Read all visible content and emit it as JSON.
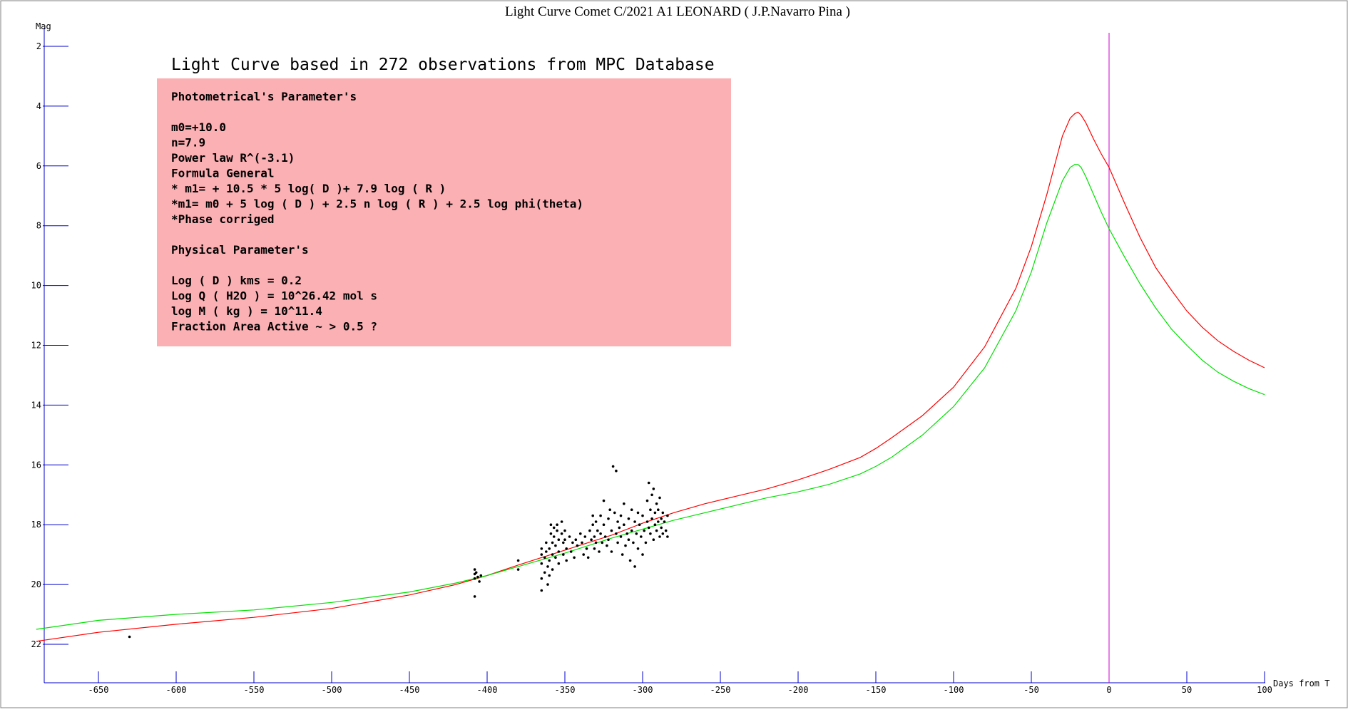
{
  "chart_data": {
    "type": "line",
    "title": "Light Curve Comet C/2021 A1 LEONARD ( J.P.Navarro Pina )",
    "xlabel": "Days from T",
    "ylabel": "Mag",
    "xlim": [
      -690,
      100
    ],
    "ylim": [
      23.2,
      1.6
    ],
    "y_inverted": true,
    "grid": false,
    "x_ticks": [
      -650,
      -600,
      -550,
      -500,
      -450,
      -400,
      -350,
      -300,
      -250,
      -200,
      -150,
      -100,
      -50,
      0,
      50,
      100
    ],
    "y_ticks": [
      2,
      4,
      6,
      8,
      10,
      12,
      14,
      16,
      18,
      20,
      22
    ],
    "colors": {
      "axis": "#0000cc",
      "frame": "#808080",
      "red_curve": "#ff0000",
      "green_curve": "#00e000",
      "perihelion_line": "#cc00cc",
      "observations": "#000000",
      "info_box": "#fbb0b4"
    },
    "perihelion_x": 0,
    "annotation_headline": "Light Curve based in 272 observations from MPC Database",
    "annotation_lines": [
      "Photometrical's Parameter's",
      "",
      "m0=+10.0",
      "n=7.9",
      "Power law R^(-3.1)",
      "Formula General",
      "* m1= + 10.5 * 5 log( D )+ 7.9 log ( R )",
      "*m1= m0 + 5 log ( D ) + 2.5 n  log ( R ) + 2.5 log phi(theta)",
      "*Phase corriged",
      "",
      "Physical Parameter's",
      "",
      "Log ( D ) kms = 0.2",
      "Log Q ( H2O ) = 10^26.42 mol s",
      "log M ( kg ) = 10^11.4",
      "Fraction Area Active ~ > 0.5 ?"
    ],
    "series": [
      {
        "color": "#ff0000",
        "x": [
          -690,
          -650,
          -600,
          -550,
          -500,
          -450,
          -420,
          -400,
          -380,
          -350,
          -320,
          -300,
          -280,
          -260,
          -240,
          -220,
          -200,
          -180,
          -160,
          -150,
          -140,
          -120,
          -100,
          -80,
          -60,
          -50,
          -40,
          -30,
          -25,
          -22,
          -20,
          -18,
          -15,
          -10,
          -5,
          0,
          10,
          20,
          30,
          40,
          50,
          60,
          70,
          80,
          90,
          100
        ],
        "y": [
          21.9,
          21.6,
          21.33,
          21.1,
          20.8,
          20.35,
          20.0,
          19.7,
          19.35,
          18.85,
          18.35,
          17.95,
          17.6,
          17.3,
          17.05,
          16.8,
          16.5,
          16.15,
          15.75,
          15.45,
          15.1,
          14.35,
          13.4,
          12.05,
          10.1,
          8.7,
          6.95,
          5.0,
          4.4,
          4.25,
          4.2,
          4.3,
          4.55,
          5.1,
          5.6,
          6.05,
          7.25,
          8.4,
          9.4,
          10.15,
          10.85,
          11.4,
          11.85,
          12.2,
          12.5,
          12.75
        ]
      },
      {
        "color": "#00e000",
        "x": [
          -690,
          -650,
          -600,
          -550,
          -500,
          -450,
          -420,
          -400,
          -380,
          -350,
          -320,
          -300,
          -280,
          -260,
          -240,
          -220,
          -200,
          -180,
          -160,
          -150,
          -140,
          -120,
          -100,
          -80,
          -60,
          -50,
          -40,
          -30,
          -25,
          -22,
          -20,
          -18,
          -15,
          -10,
          -5,
          0,
          10,
          20,
          30,
          40,
          50,
          60,
          70,
          80,
          90,
          100
        ],
        "y": [
          21.5,
          21.2,
          21.0,
          20.85,
          20.6,
          20.25,
          19.95,
          19.7,
          19.4,
          18.95,
          18.45,
          18.15,
          17.85,
          17.6,
          17.35,
          17.1,
          16.9,
          16.65,
          16.3,
          16.05,
          15.75,
          15.0,
          14.05,
          12.75,
          10.85,
          9.55,
          7.9,
          6.5,
          6.05,
          5.95,
          5.95,
          6.05,
          6.35,
          6.95,
          7.55,
          8.1,
          9.05,
          9.95,
          10.75,
          11.45,
          12.0,
          12.5,
          12.9,
          13.2,
          13.45,
          13.65
        ]
      }
    ],
    "observations": [
      [
        -630,
        21.75
      ],
      [
        -408,
        19.5
      ],
      [
        -408,
        19.65
      ],
      [
        -408,
        19.8
      ],
      [
        -408,
        20.4
      ],
      [
        -407,
        19.6
      ],
      [
        -406,
        19.75
      ],
      [
        -405,
        19.9
      ],
      [
        -404,
        19.7
      ],
      [
        -380,
        19.2
      ],
      [
        -380,
        19.5
      ],
      [
        -365,
        19.8
      ],
      [
        -365,
        20.2
      ],
      [
        -365,
        19.0
      ],
      [
        -365,
        18.8
      ],
      [
        -365,
        19.3
      ],
      [
        -363,
        19.1
      ],
      [
        -363,
        19.6
      ],
      [
        -362,
        18.6
      ],
      [
        -362,
        18.9
      ],
      [
        -361,
        19.4
      ],
      [
        -361,
        20.0
      ],
      [
        -360,
        18.8
      ],
      [
        -360,
        19.2
      ],
      [
        -360,
        19.7
      ],
      [
        -359,
        18.0
      ],
      [
        -359,
        18.3
      ],
      [
        -358,
        18.6
      ],
      [
        -358,
        19.0
      ],
      [
        -358,
        19.5
      ],
      [
        -357,
        18.1
      ],
      [
        -357,
        18.4
      ],
      [
        -356,
        18.7
      ],
      [
        -356,
        19.1
      ],
      [
        -355,
        18.0
      ],
      [
        -355,
        18.2
      ],
      [
        -354,
        18.5
      ],
      [
        -354,
        18.9
      ],
      [
        -354,
        19.3
      ],
      [
        -352,
        17.9
      ],
      [
        -352,
        18.3
      ],
      [
        -351,
        18.6
      ],
      [
        -351,
        19.0
      ],
      [
        -350,
        18.2
      ],
      [
        -350,
        18.5
      ],
      [
        -349,
        18.8
      ],
      [
        -349,
        19.2
      ],
      [
        -347,
        18.4
      ],
      [
        -346,
        18.9
      ],
      [
        -345,
        18.6
      ],
      [
        -344,
        19.1
      ],
      [
        -343,
        18.5
      ],
      [
        -342,
        18.7
      ],
      [
        -340,
        18.3
      ],
      [
        -339,
        18.6
      ],
      [
        -338,
        19.0
      ],
      [
        -337,
        18.4
      ],
      [
        -336,
        18.8
      ],
      [
        -335,
        19.1
      ],
      [
        -334,
        18.2
      ],
      [
        -333,
        18.5
      ],
      [
        -332,
        17.7
      ],
      [
        -332,
        18.0
      ],
      [
        -331,
        18.4
      ],
      [
        -331,
        18.8
      ],
      [
        -330,
        17.9
      ],
      [
        -330,
        18.6
      ],
      [
        -329,
        18.2
      ],
      [
        -328,
        18.9
      ],
      [
        -327,
        17.7
      ],
      [
        -327,
        18.3
      ],
      [
        -326,
        18.6
      ],
      [
        -325,
        17.2
      ],
      [
        -325,
        18.0
      ],
      [
        -324,
        18.4
      ],
      [
        -323,
        18.7
      ],
      [
        -322,
        17.8
      ],
      [
        -322,
        18.5
      ],
      [
        -321,
        17.5
      ],
      [
        -320,
        18.2
      ],
      [
        -320,
        18.9
      ],
      [
        -319,
        16.05
      ],
      [
        -317,
        16.2
      ],
      [
        -318,
        17.6
      ],
      [
        -317,
        18.3
      ],
      [
        -316,
        17.9
      ],
      [
        -316,
        18.6
      ],
      [
        -315,
        18.1
      ],
      [
        -314,
        17.7
      ],
      [
        -314,
        18.4
      ],
      [
        -313,
        19.0
      ],
      [
        -312,
        17.3
      ],
      [
        -312,
        18.0
      ],
      [
        -311,
        18.7
      ],
      [
        -310,
        18.3
      ],
      [
        -309,
        17.8
      ],
      [
        -309,
        18.5
      ],
      [
        -308,
        19.2
      ],
      [
        -307,
        17.5
      ],
      [
        -307,
        18.2
      ],
      [
        -306,
        18.6
      ],
      [
        -305,
        17.9
      ],
      [
        -305,
        19.4
      ],
      [
        -304,
        18.3
      ],
      [
        -303,
        17.6
      ],
      [
        -303,
        18.8
      ],
      [
        -302,
        18.0
      ],
      [
        -301,
        18.4
      ],
      [
        -300,
        17.7
      ],
      [
        -300,
        19.0
      ],
      [
        -299,
        18.2
      ],
      [
        -298,
        18.6
      ],
      [
        -297,
        17.2
      ],
      [
        -297,
        17.9
      ],
      [
        -296,
        16.6
      ],
      [
        -296,
        18.1
      ],
      [
        -295,
        17.5
      ],
      [
        -295,
        18.3
      ],
      [
        -294,
        17.0
      ],
      [
        -294,
        17.8
      ],
      [
        -293,
        16.8
      ],
      [
        -293,
        18.5
      ],
      [
        -292,
        17.6
      ],
      [
        -292,
        18.0
      ],
      [
        -291,
        17.3
      ],
      [
        -291,
        18.2
      ],
      [
        -290,
        17.9
      ],
      [
        -290,
        17.5
      ],
      [
        -289,
        18.4
      ],
      [
        -289,
        17.1
      ],
      [
        -288,
        17.8
      ],
      [
        -288,
        18.1
      ],
      [
        -287,
        17.6
      ],
      [
        -287,
        18.3
      ],
      [
        -286,
        17.9
      ],
      [
        -285,
        18.2
      ],
      [
        -284,
        17.7
      ],
      [
        -284,
        18.4
      ]
    ]
  }
}
